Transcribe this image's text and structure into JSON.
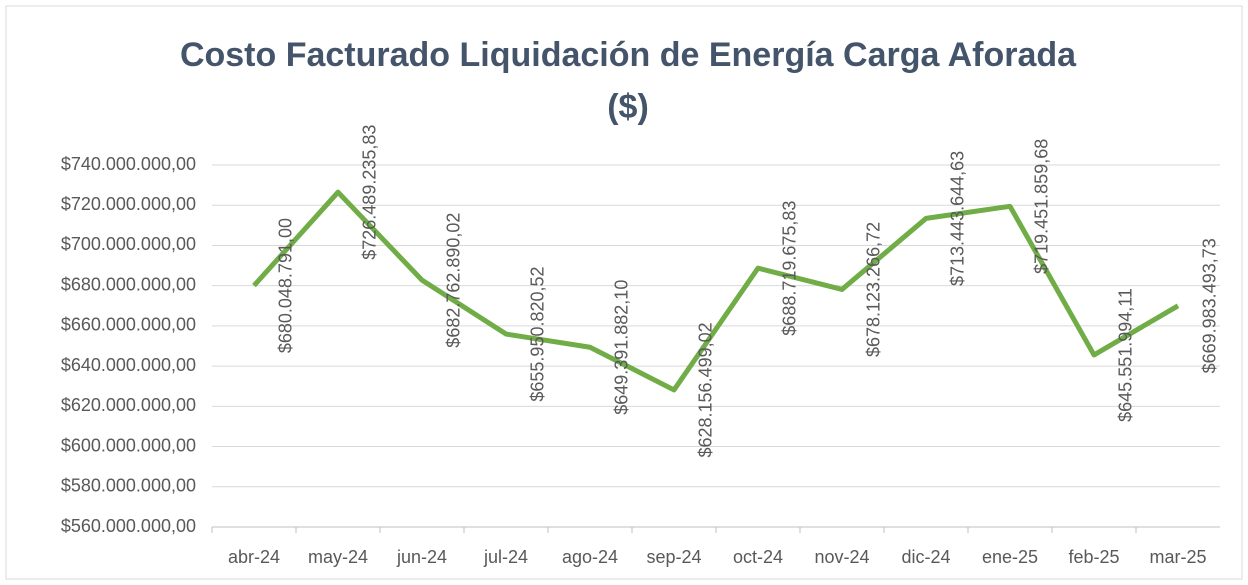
{
  "chart_data": {
    "type": "line",
    "title": [
      "Costo Facturado  Liquidación de Energía Carga Aforada",
      "($)"
    ],
    "categories": [
      "abr-24",
      "may-24",
      "jun-24",
      "jul-24",
      "ago-24",
      "sep-24",
      "oct-24",
      "nov-24",
      "dic-24",
      "ene-25",
      "feb-25",
      "mar-25"
    ],
    "values": [
      680048791.0,
      726489235.83,
      682762890.02,
      655950820.52,
      649391882.1,
      628156499.02,
      688719675.83,
      678123266.72,
      713443644.63,
      719451859.68,
      645551994.11,
      669983493.73
    ],
    "value_labels": [
      "$680.048.791,00",
      "$726.489.235,83",
      "$682.762.890,02",
      "$655.950.820,52",
      "$649.391.882,10",
      "$628.156.499,02",
      "$688.719.675,83",
      "$678.123.266,72",
      "$713.443.644,63",
      "$719.451.859,68",
      "$645.551.994,11",
      "$669.983.493,73"
    ],
    "color": "#70ad47",
    "ylim": [
      560000000,
      740000000
    ],
    "yticks": [
      {
        "value": 560000000,
        "label": "$560.000.000,00"
      },
      {
        "value": 580000000,
        "label": "$580.000.000,00"
      },
      {
        "value": 600000000,
        "label": "$600.000.000,00"
      },
      {
        "value": 620000000,
        "label": "$620.000.000,00"
      },
      {
        "value": 640000000,
        "label": "$640.000.000,00"
      },
      {
        "value": 660000000,
        "label": "$660.000.000,00"
      },
      {
        "value": 680000000,
        "label": "$680.000.000,00"
      },
      {
        "value": 700000000,
        "label": "$700.000.000,00"
      },
      {
        "value": 720000000,
        "label": "$720.000.000,00"
      },
      {
        "value": 740000000,
        "label": "$740.000.000,00"
      }
    ],
    "grid": true
  }
}
